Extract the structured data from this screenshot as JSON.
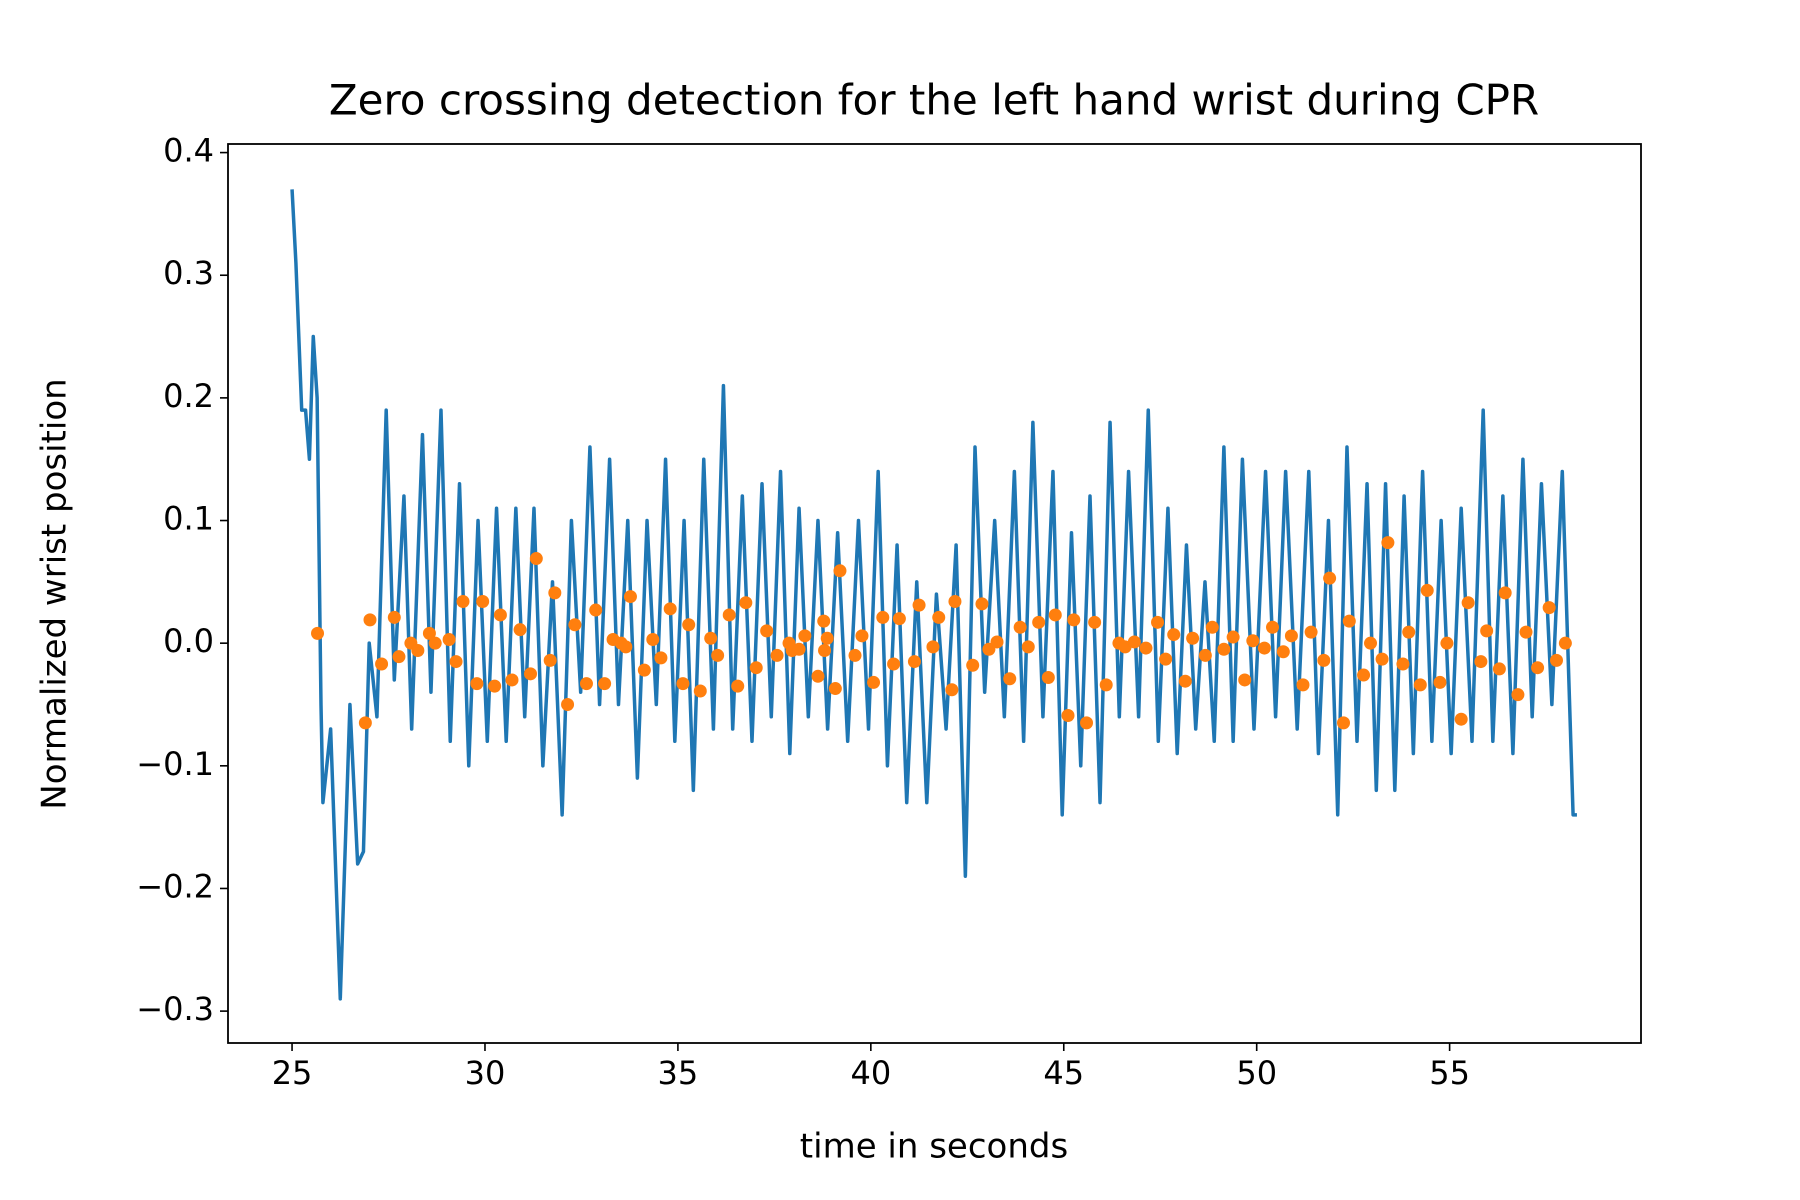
{
  "chart_data": {
    "type": "line",
    "title": "Zero crossing detection for the left hand wrist during CPR",
    "xlabel": "time in seconds",
    "ylabel": "Normalized wrist position",
    "xlim": [
      23.34,
      59.96
    ],
    "ylim": [
      -0.326,
      0.407
    ],
    "xticks": [
      25,
      30,
      35,
      40,
      45,
      50,
      55
    ],
    "yticks": [
      {
        "value": -0.3,
        "label": "−0.3"
      },
      {
        "value": -0.2,
        "label": "−0.2"
      },
      {
        "value": -0.1,
        "label": "−0.1"
      },
      {
        "value": 0,
        "label": "0.0"
      },
      0.1,
      0.2,
      0.3,
      0.4
    ],
    "grid": false,
    "series": [
      {
        "type": "line",
        "color": "#1f77b4",
        "x": [
          25.0,
          25.1,
          25.25,
          25.35,
          25.45,
          25.55,
          25.65,
          25.75,
          25.8,
          26.0,
          26.25,
          26.5,
          26.7,
          26.85,
          27.0,
          27.2,
          27.44,
          27.65,
          27.9,
          28.1,
          28.38,
          28.6,
          28.86,
          29.1,
          29.34,
          29.58,
          29.82,
          30.06,
          30.3,
          30.55,
          30.8,
          31.03,
          31.27,
          31.5,
          31.75,
          32.0,
          32.24,
          32.48,
          32.72,
          32.97,
          33.23,
          33.46,
          33.7,
          33.95,
          34.2,
          34.44,
          34.68,
          34.92,
          35.16,
          35.4,
          35.67,
          35.92,
          36.18,
          36.42,
          36.67,
          36.92,
          37.18,
          37.42,
          37.66,
          37.9,
          38.14,
          38.38,
          38.63,
          38.88,
          39.14,
          39.4,
          39.68,
          39.94,
          40.19,
          40.43,
          40.68,
          40.93,
          41.19,
          41.45,
          41.7,
          41.95,
          42.21,
          42.45,
          42.7,
          42.95,
          43.21,
          43.46,
          43.72,
          43.96,
          44.2,
          44.46,
          44.72,
          44.96,
          45.2,
          45.44,
          45.68,
          45.94,
          46.2,
          46.44,
          46.68,
          46.94,
          47.19,
          47.45,
          47.7,
          47.94,
          48.18,
          48.42,
          48.66,
          48.9,
          49.15,
          49.39,
          49.63,
          49.93,
          50.23,
          50.49,
          50.75,
          51.05,
          51.35,
          51.6,
          51.86,
          52.1,
          52.34,
          52.6,
          52.86,
          53.1,
          53.34,
          53.58,
          53.82,
          54.06,
          54.3,
          54.54,
          54.78,
          55.04,
          55.3,
          55.58,
          55.87,
          56.12,
          56.38,
          56.64,
          56.9,
          57.14,
          57.38,
          57.65,
          57.92,
          58.2,
          58.3
        ],
        "y": [
          0.37,
          0.31,
          0.19,
          0.19,
          0.15,
          0.25,
          0.2,
          -0.05,
          -0.13,
          -0.07,
          -0.29,
          -0.05,
          -0.18,
          -0.17,
          0.0,
          -0.06,
          0.19,
          -0.03,
          0.12,
          -0.07,
          0.17,
          -0.04,
          0.19,
          -0.08,
          0.13,
          -0.1,
          0.1,
          -0.08,
          0.11,
          -0.08,
          0.11,
          -0.06,
          0.11,
          -0.1,
          0.05,
          -0.14,
          0.1,
          -0.04,
          0.16,
          -0.05,
          0.15,
          -0.05,
          0.1,
          -0.11,
          0.1,
          -0.05,
          0.15,
          -0.08,
          0.1,
          -0.12,
          0.15,
          -0.07,
          0.21,
          -0.07,
          0.12,
          -0.08,
          0.13,
          -0.06,
          0.14,
          -0.09,
          0.11,
          -0.06,
          0.1,
          -0.07,
          0.09,
          -0.08,
          0.1,
          -0.07,
          0.14,
          -0.1,
          0.08,
          -0.13,
          0.05,
          -0.13,
          0.04,
          -0.07,
          0.08,
          -0.19,
          0.16,
          -0.04,
          0.1,
          -0.06,
          0.14,
          -0.08,
          0.18,
          -0.06,
          0.14,
          -0.14,
          0.09,
          -0.1,
          0.12,
          -0.13,
          0.18,
          -0.06,
          0.14,
          -0.06,
          0.19,
          -0.08,
          0.11,
          -0.09,
          0.08,
          -0.07,
          0.05,
          -0.08,
          0.16,
          -0.08,
          0.15,
          -0.07,
          0.14,
          -0.06,
          0.14,
          -0.07,
          0.14,
          -0.09,
          0.1,
          -0.14,
          0.16,
          -0.08,
          0.13,
          -0.12,
          0.13,
          -0.12,
          0.12,
          -0.09,
          0.14,
          -0.08,
          0.1,
          -0.09,
          0.11,
          -0.08,
          0.19,
          -0.08,
          0.12,
          -0.09,
          0.15,
          -0.06,
          0.13,
          -0.05,
          0.14,
          -0.14,
          -0.14
        ]
      },
      {
        "type": "scatter",
        "color": "#ff7f0e",
        "x": [
          25.66,
          26.9,
          27.02,
          27.32,
          27.65,
          27.77,
          28.08,
          28.26,
          28.56,
          28.71,
          29.07,
          29.25,
          29.43,
          29.79,
          29.94,
          30.25,
          30.4,
          30.7,
          30.91,
          31.18,
          31.33,
          31.69,
          31.81,
          32.14,
          32.33,
          32.63,
          32.87,
          33.1,
          33.32,
          33.53,
          33.65,
          33.77,
          34.13,
          34.35,
          34.56,
          34.8,
          35.13,
          35.28,
          35.58,
          35.85,
          36.03,
          36.33,
          36.55,
          36.76,
          37.03,
          37.3,
          37.57,
          37.88,
          37.96,
          38.14,
          38.29,
          38.63,
          38.78,
          38.8,
          38.87,
          39.08,
          39.2,
          39.59,
          39.77,
          40.07,
          40.31,
          40.59,
          40.74,
          41.13,
          41.25,
          41.61,
          41.76,
          42.1,
          42.18,
          42.64,
          42.88,
          43.06,
          43.27,
          43.6,
          43.87,
          44.08,
          44.35,
          44.6,
          44.78,
          45.11,
          45.26,
          45.59,
          45.8,
          46.1,
          46.43,
          46.59,
          46.83,
          47.13,
          47.43,
          47.64,
          47.85,
          48.15,
          48.34,
          48.67,
          48.85,
          49.15,
          49.39,
          49.69,
          49.9,
          50.2,
          50.41,
          50.69,
          50.9,
          51.2,
          51.41,
          51.74,
          51.89,
          52.25,
          52.4,
          52.77,
          52.95,
          53.25,
          53.4,
          53.79,
          53.94,
          54.24,
          54.42,
          54.75,
          54.93,
          55.3,
          55.48,
          55.81,
          55.96,
          56.29,
          56.44,
          56.77,
          56.98,
          57.28,
          57.58,
          57.77,
          58.0
        ],
        "y": [
          0.008,
          -0.065,
          0.019,
          -0.017,
          0.021,
          -0.011,
          0.0,
          -0.006,
          0.008,
          0.0,
          0.003,
          -0.015,
          0.034,
          -0.033,
          0.034,
          -0.035,
          0.023,
          -0.03,
          0.011,
          -0.025,
          0.069,
          -0.014,
          0.041,
          -0.05,
          0.015,
          -0.033,
          0.027,
          -0.033,
          0.003,
          0.0,
          -0.003,
          0.038,
          -0.022,
          0.003,
          -0.012,
          0.028,
          -0.033,
          0.015,
          -0.039,
          0.004,
          -0.01,
          0.023,
          -0.035,
          0.033,
          -0.02,
          0.01,
          -0.01,
          0.0,
          -0.006,
          -0.005,
          0.006,
          -0.027,
          0.018,
          -0.006,
          0.004,
          -0.037,
          0.059,
          -0.01,
          0.006,
          -0.032,
          0.021,
          -0.017,
          0.02,
          -0.015,
          0.031,
          -0.003,
          0.021,
          -0.038,
          0.034,
          -0.018,
          0.032,
          -0.005,
          0.001,
          -0.029,
          0.013,
          -0.003,
          0.017,
          -0.028,
          0.023,
          -0.059,
          0.019,
          -0.065,
          0.017,
          -0.034,
          0.0,
          -0.003,
          0.001,
          -0.004,
          0.017,
          -0.013,
          0.007,
          -0.031,
          0.004,
          -0.01,
          0.013,
          -0.005,
          0.005,
          -0.03,
          0.002,
          -0.004,
          0.013,
          -0.007,
          0.006,
          -0.034,
          0.009,
          -0.014,
          0.053,
          -0.065,
          0.018,
          -0.026,
          0.0,
          -0.013,
          0.082,
          -0.017,
          0.009,
          -0.034,
          0.043,
          -0.032,
          0.0,
          -0.062,
          0.033,
          -0.015,
          0.01,
          -0.021,
          0.041,
          -0.042,
          0.009,
          -0.02,
          0.029,
          -0.014,
          0.0
        ]
      }
    ]
  }
}
